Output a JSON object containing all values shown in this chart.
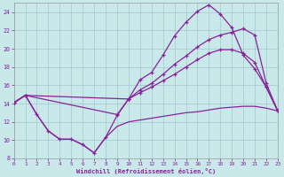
{
  "xlabel": "Windchill (Refroidissement éolien,°C)",
  "xlim": [
    0,
    23
  ],
  "ylim": [
    8,
    25
  ],
  "xticks": [
    0,
    1,
    2,
    3,
    4,
    5,
    6,
    7,
    8,
    9,
    10,
    11,
    12,
    13,
    14,
    15,
    16,
    17,
    18,
    19,
    20,
    21,
    22,
    23
  ],
  "yticks": [
    8,
    10,
    12,
    14,
    16,
    18,
    20,
    22,
    24
  ],
  "bg_color": "#c8e8ea",
  "grid_color": "#aacdd0",
  "line_color": "#882299",
  "s1_x": [
    0,
    1,
    2,
    3,
    4,
    5,
    6,
    7,
    8,
    9,
    10,
    11,
    12,
    13,
    14,
    15,
    16,
    17,
    18,
    19,
    20,
    21,
    22,
    23
  ],
  "s1_y": [
    14.1,
    14.9,
    12.8,
    11.0,
    10.1,
    10.1,
    9.5,
    8.6,
    10.3,
    12.7,
    14.5,
    16.6,
    17.4,
    19.3,
    21.4,
    22.9,
    24.1,
    24.8,
    23.8,
    22.3,
    19.3,
    17.8,
    15.8,
    13.2
  ],
  "s2_x": [
    0,
    1,
    10,
    11,
    12,
    13,
    14,
    15,
    16,
    17,
    18,
    19,
    20,
    21,
    22,
    23
  ],
  "s2_y": [
    14.1,
    14.9,
    14.5,
    15.5,
    16.2,
    17.2,
    18.3,
    19.2,
    20.2,
    21.0,
    21.5,
    21.8,
    22.2,
    21.5,
    16.2,
    13.2
  ],
  "s3_x": [
    0,
    1,
    9,
    10,
    11,
    12,
    13,
    14,
    15,
    16,
    17,
    18,
    19,
    20,
    21,
    22,
    23
  ],
  "s3_y": [
    14.1,
    14.9,
    12.8,
    14.5,
    15.2,
    15.8,
    16.5,
    17.2,
    18.0,
    18.8,
    19.5,
    19.9,
    19.9,
    19.5,
    18.5,
    15.8,
    13.2
  ],
  "s4_x": [
    0,
    1,
    2,
    3,
    4,
    5,
    6,
    7,
    8,
    9,
    10,
    11,
    12,
    13,
    14,
    15,
    16,
    17,
    18,
    19,
    20,
    21,
    22,
    23
  ],
  "s4_y": [
    14.1,
    14.9,
    12.8,
    11.0,
    10.1,
    10.1,
    9.5,
    8.6,
    10.3,
    11.5,
    12.0,
    12.2,
    12.4,
    12.6,
    12.8,
    13.0,
    13.1,
    13.3,
    13.5,
    13.6,
    13.7,
    13.7,
    13.5,
    13.2
  ]
}
